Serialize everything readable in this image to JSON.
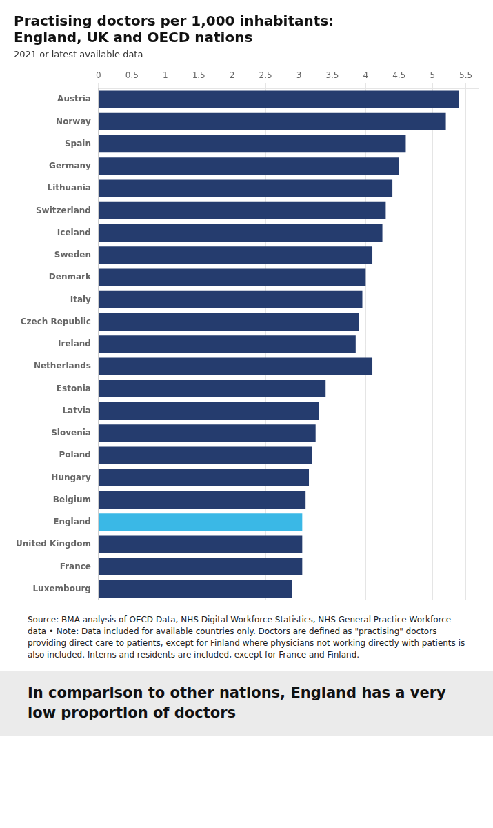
{
  "chart_data": {
    "type": "bar",
    "orientation": "horizontal",
    "title": [
      "Practising doctors per 1,000 inhabitants:",
      "England, UK and OECD nations"
    ],
    "subtitle": "2021 or latest available data",
    "categories": [
      "Austria",
      "Norway",
      "Spain",
      "Germany",
      "Lithuania",
      "Switzerland",
      "Iceland",
      "Sweden",
      "Denmark",
      "Italy",
      "Czech Republic",
      "Ireland",
      "Netherlands",
      "Estonia",
      "Latvia",
      "Slovenia",
      "Poland",
      "Hungary",
      "Belgium",
      "England",
      "United Kingdom",
      "France",
      "Luxembourg"
    ],
    "values": [
      5.4,
      5.2,
      4.6,
      4.5,
      4.4,
      4.3,
      4.25,
      4.1,
      4.0,
      3.95,
      3.9,
      3.85,
      4.1,
      3.4,
      3.3,
      3.25,
      3.2,
      3.15,
      3.1,
      3.05,
      3.05,
      3.05,
      2.9
    ],
    "colors": [
      "#253c6e",
      "#253c6e",
      "#253c6e",
      "#253c6e",
      "#253c6e",
      "#253c6e",
      "#253c6e",
      "#253c6e",
      "#253c6e",
      "#253c6e",
      "#253c6e",
      "#253c6e",
      "#253c6e",
      "#253c6e",
      "#253c6e",
      "#253c6e",
      "#253c6e",
      "#253c6e",
      "#253c6e",
      "#3ab8e6",
      "#253c6e",
      "#253c6e",
      "#253c6e"
    ],
    "xlim": [
      0,
      5.7
    ],
    "xticks": [
      0,
      0.5,
      1,
      1.5,
      2,
      2.5,
      3,
      3.5,
      4,
      4.5,
      5,
      5.5
    ],
    "grid": true,
    "annotations": [
      "Source: BMA analysis of OECD Data, NHS Digital Workforce Statistics, NHS General Practice Workforce data • Note: Data included for available countries only. Doctors are defined as \"practising\" doctors providing direct care to patients, except for Finland where physicians not working directly with patients is also included. Interns and residents are included, except for France and Finland.",
      "In comparison to other nations, England has a very low proportion of doctors"
    ]
  }
}
